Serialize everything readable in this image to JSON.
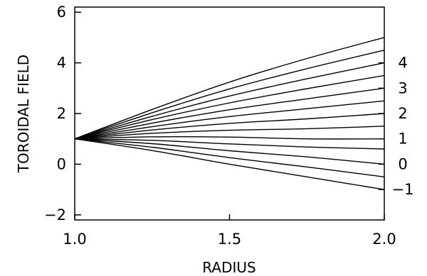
{
  "chart_data": {
    "type": "line",
    "title": "",
    "xlabel": "RADIUS",
    "ylabel": "TOROIDAL  FIELD",
    "xlim": [
      1.0,
      2.0
    ],
    "ylim": [
      -2.2,
      6.2
    ],
    "x_ticks": [
      1.0,
      1.5,
      2.0
    ],
    "x_tick_labels": [
      "1.0",
      "1.5",
      "2.0"
    ],
    "y_ticks": [
      -2,
      0,
      2,
      4,
      6
    ],
    "y_tick_labels": [
      "−2",
      "0",
      "2",
      "4",
      "6"
    ],
    "right_labels": [
      {
        "text": "4",
        "y": 4.0
      },
      {
        "text": "3",
        "y": 3.0
      },
      {
        "text": "2",
        "y": 2.0
      },
      {
        "text": "1",
        "y": 1.0
      },
      {
        "text": "0",
        "y": 0.0
      },
      {
        "text": "−1",
        "y": -1.0
      }
    ],
    "grid": false,
    "legend": "none",
    "x": [
      1.0,
      1.25,
      1.5,
      1.75,
      2.0
    ],
    "series": [
      {
        "values": [
          1.0,
          2.16,
          3.24,
          4.17,
          5.0
        ]
      },
      {
        "values": [
          1.0,
          2.03,
          2.97,
          3.77,
          4.5
        ]
      },
      {
        "values": [
          1.0,
          1.89,
          2.69,
          3.37,
          4.0
        ]
      },
      {
        "values": [
          1.0,
          1.76,
          2.42,
          2.98,
          3.5
        ]
      },
      {
        "values": [
          1.0,
          1.62,
          2.15,
          2.58,
          3.0
        ]
      },
      {
        "values": [
          1.0,
          1.48,
          1.88,
          2.19,
          2.5
        ]
      },
      {
        "values": [
          1.0,
          1.35,
          1.61,
          1.79,
          2.0
        ]
      },
      {
        "values": [
          1.0,
          1.22,
          1.34,
          1.4,
          1.5
        ]
      },
      {
        "values": [
          1.0,
          1.08,
          1.07,
          1.0,
          1.0
        ]
      },
      {
        "values": [
          1.0,
          0.94,
          0.8,
          0.68,
          0.6
        ]
      },
      {
        "values": [
          1.0,
          0.81,
          0.53,
          0.29,
          0.0
        ]
      },
      {
        "values": [
          1.0,
          0.67,
          0.26,
          -0.11,
          -0.5
        ]
      },
      {
        "values": [
          1.0,
          0.54,
          0.0,
          -0.5,
          -1.0
        ]
      }
    ],
    "colors": {
      "line": "#000000",
      "background": "#ffffff"
    }
  }
}
